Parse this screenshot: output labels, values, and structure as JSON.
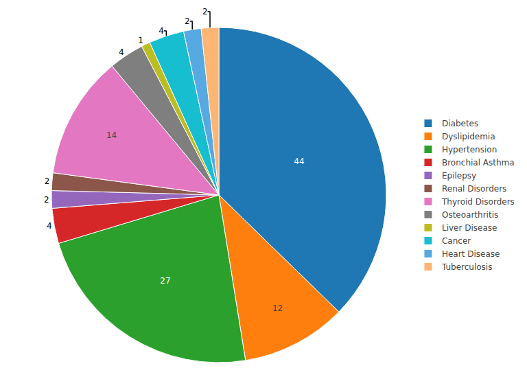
{
  "chart_data": {
    "type": "pie",
    "categories": [
      "Diabetes",
      "Dyslipidemia",
      "Hypertension",
      "Bronchial Asthma",
      "Epilepsy",
      "Renal Disorders",
      "Thyroid Disorders",
      "Osteoarthritis",
      "Liver Disease",
      "Cancer",
      "Heart Disease",
      "Tuberculosis"
    ],
    "values": [
      44,
      12,
      27,
      4,
      2,
      2,
      14,
      4,
      1,
      4,
      2,
      2
    ],
    "data_labels": true,
    "legend": "right"
  }
}
